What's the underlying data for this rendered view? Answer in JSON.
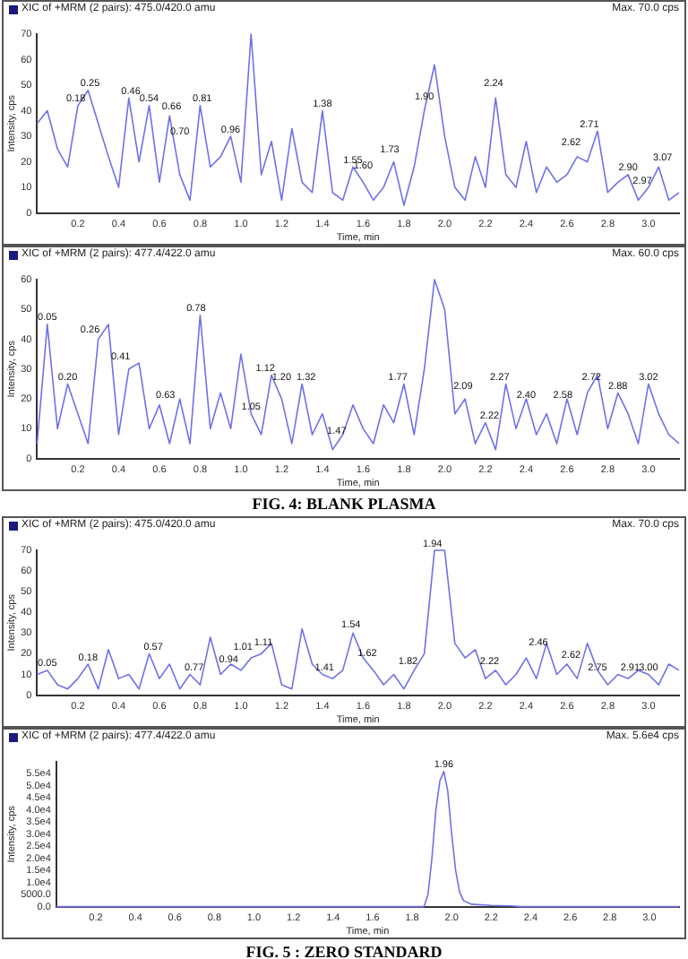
{
  "chart_data": [
    {
      "type": "line",
      "title": "XIC of +MRM (2 pairs): 475.0/420.0 amu",
      "subtitle": "Max. 70.0 cps",
      "xlabel": "Time, min",
      "ylabel": "Intensity, cps",
      "xlim": [
        0,
        3.15
      ],
      "ylim": [
        0,
        70
      ],
      "xticks": [
        0.2,
        0.4,
        0.6,
        0.8,
        {
          "value": 1,
          "label": "1.0"
        },
        1.2,
        1.4,
        1.6,
        1.8,
        {
          "value": 2,
          "label": "2.0"
        },
        2.2,
        2.4,
        2.6,
        2.8,
        {
          "value": 3,
          "label": "3.0"
        }
      ],
      "yticks": [
        0,
        10,
        20,
        30,
        40,
        50,
        60,
        70
      ],
      "x": [
        0,
        0.05,
        0.1,
        0.15,
        0.2,
        0.25,
        0.3,
        0.35,
        0.4,
        0.45,
        0.5,
        0.55,
        0.6,
        0.65,
        0.7,
        0.75,
        0.8,
        0.85,
        0.9,
        0.95,
        1,
        1.05,
        1.1,
        1.15,
        1.2,
        1.25,
        1.3,
        1.35,
        1.4,
        1.45,
        1.5,
        1.55,
        1.6,
        1.65,
        1.7,
        1.75,
        1.8,
        1.85,
        1.9,
        1.95,
        2,
        2.05,
        2.1,
        2.15,
        2.2,
        2.25,
        2.3,
        2.35,
        2.4,
        2.45,
        2.5,
        2.55,
        2.6,
        2.65,
        2.7,
        2.75,
        2.8,
        2.85,
        2.9,
        2.95,
        3,
        3.05,
        3.1,
        3.15
      ],
      "series": [
        {
          "color": "#7070e8",
          "values": [
            35,
            40,
            25,
            18,
            42,
            48,
            35,
            22,
            10,
            45,
            20,
            42,
            12,
            38,
            15,
            5,
            42,
            18,
            22,
            30,
            12,
            70,
            15,
            28,
            5,
            33,
            12,
            8,
            40,
            8,
            5,
            18,
            12,
            5,
            10,
            20,
            3,
            18,
            40,
            58,
            30,
            10,
            5,
            22,
            10,
            45,
            15,
            10,
            28,
            8,
            18,
            12,
            15,
            22,
            20,
            32,
            8,
            12,
            15,
            5,
            10,
            18,
            5,
            8
          ]
        }
      ],
      "annotations": [
        {
          "text": "0.18",
          "x": 0.19,
          "y": 42
        },
        {
          "text": "0.25",
          "x": 0.26,
          "y": 48
        },
        {
          "text": "0.46",
          "x": 0.46,
          "y": 45
        },
        {
          "text": "0.54",
          "x": 0.55,
          "y": 42
        },
        {
          "text": "0.66",
          "x": 0.66,
          "y": 39
        },
        {
          "text": "0.70",
          "x": 0.7,
          "y": 29
        },
        {
          "text": "0.81",
          "x": 0.81,
          "y": 42
        },
        {
          "text": "0.96",
          "x": 0.95,
          "y": 30
        },
        {
          "text": "1.38",
          "x": 1.4,
          "y": 40
        },
        {
          "text": "1.55",
          "x": 1.55,
          "y": 18
        },
        {
          "text": "1.60",
          "x": 1.6,
          "y": 16
        },
        {
          "text": "1.73",
          "x": 1.73,
          "y": 22
        },
        {
          "text": "1.90",
          "x": 1.9,
          "y": 43
        },
        {
          "text": "2.24",
          "x": 2.24,
          "y": 48
        },
        {
          "text": "2.62",
          "x": 2.62,
          "y": 25
        },
        {
          "text": "2.71",
          "x": 2.71,
          "y": 32
        },
        {
          "text": "2.90",
          "x": 2.9,
          "y": 15
        },
        {
          "text": "2.97",
          "x": 2.97,
          "y": 10
        },
        {
          "text": "3.07",
          "x": 3.07,
          "y": 19
        }
      ],
      "grid": false,
      "legend": false,
      "marker": "none",
      "line_style": "solid"
    },
    {
      "type": "line",
      "title": "XIC of +MRM (2 pairs): 477.4/422.0 amu",
      "subtitle": "Max. 60.0 cps",
      "xlabel": "Time, min",
      "ylabel": "Intensity, cps",
      "xlim": [
        0,
        3.15
      ],
      "ylim": [
        0,
        60
      ],
      "xticks": [
        0.2,
        0.4,
        0.6,
        0.8,
        {
          "value": 1,
          "label": "1.0"
        },
        1.2,
        1.4,
        1.6,
        1.8,
        {
          "value": 2,
          "label": "2.0"
        },
        2.2,
        2.4,
        2.6,
        2.8,
        {
          "value": 3,
          "label": "3.0"
        }
      ],
      "yticks": [
        0,
        10,
        20,
        30,
        40,
        50,
        60
      ],
      "x": [
        0,
        0.05,
        0.1,
        0.15,
        0.2,
        0.25,
        0.3,
        0.35,
        0.4,
        0.45,
        0.5,
        0.55,
        0.6,
        0.65,
        0.7,
        0.75,
        0.8,
        0.85,
        0.9,
        0.95,
        1,
        1.05,
        1.1,
        1.15,
        1.2,
        1.25,
        1.3,
        1.35,
        1.4,
        1.45,
        1.5,
        1.55,
        1.6,
        1.65,
        1.7,
        1.75,
        1.8,
        1.85,
        1.9,
        1.95,
        2,
        2.05,
        2.1,
        2.15,
        2.2,
        2.25,
        2.3,
        2.35,
        2.4,
        2.45,
        2.5,
        2.55,
        2.6,
        2.65,
        2.7,
        2.75,
        2.8,
        2.85,
        2.9,
        2.95,
        3,
        3.05,
        3.1,
        3.15
      ],
      "series": [
        {
          "color": "#7070e8",
          "values": [
            5,
            45,
            10,
            25,
            15,
            5,
            40,
            45,
            8,
            30,
            32,
            10,
            18,
            5,
            20,
            5,
            48,
            10,
            22,
            10,
            35,
            15,
            8,
            28,
            20,
            5,
            25,
            8,
            15,
            3,
            8,
            18,
            10,
            5,
            18,
            12,
            25,
            8,
            30,
            60,
            50,
            15,
            20,
            5,
            12,
            3,
            25,
            10,
            20,
            8,
            15,
            5,
            20,
            8,
            22,
            28,
            10,
            22,
            15,
            5,
            25,
            15,
            8,
            5
          ]
        }
      ],
      "annotations": [
        {
          "text": "0.05",
          "x": 0.05,
          "y": 45
        },
        {
          "text": "0.20",
          "x": 0.15,
          "y": 25
        },
        {
          "text": "0.26",
          "x": 0.26,
          "y": 41
        },
        {
          "text": "0.41",
          "x": 0.41,
          "y": 32
        },
        {
          "text": "0.63",
          "x": 0.63,
          "y": 19
        },
        {
          "text": "0.78",
          "x": 0.78,
          "y": 48
        },
        {
          "text": "1.05",
          "x": 1.05,
          "y": 15
        },
        {
          "text": "1.12",
          "x": 1.12,
          "y": 28
        },
        {
          "text": "1.20",
          "x": 1.2,
          "y": 25
        },
        {
          "text": "1.32",
          "x": 1.32,
          "y": 25
        },
        {
          "text": "1.47",
          "x": 1.47,
          "y": 7
        },
        {
          "text": "1.77",
          "x": 1.77,
          "y": 25
        },
        {
          "text": "2.09",
          "x": 2.09,
          "y": 22
        },
        {
          "text": "2.22",
          "x": 2.22,
          "y": 12
        },
        {
          "text": "2.27",
          "x": 2.27,
          "y": 25
        },
        {
          "text": "2.40",
          "x": 2.4,
          "y": 19
        },
        {
          "text": "2.58",
          "x": 2.58,
          "y": 19
        },
        {
          "text": "2.72",
          "x": 2.72,
          "y": 25
        },
        {
          "text": "2.88",
          "x": 2.85,
          "y": 22
        },
        {
          "text": "3.02",
          "x": 3,
          "y": 25
        },
        "FIG. 4: BLANK PLASMA"
      ],
      "grid": false,
      "legend": false,
      "marker": "none",
      "line_style": "solid"
    },
    {
      "type": "line",
      "title": "XIC of +MRM (2 pairs): 475.0/420.0 amu",
      "subtitle": "Max. 70.0 cps",
      "xlabel": "Time, min",
      "ylabel": "Intensity, cps",
      "xlim": [
        0,
        3.15
      ],
      "ylim": [
        0,
        70
      ],
      "xticks": [
        0.2,
        0.4,
        0.6,
        0.8,
        {
          "value": 1,
          "label": "1.0"
        },
        1.2,
        1.4,
        1.6,
        1.8,
        {
          "value": 2,
          "label": "2.0"
        },
        2.2,
        2.4,
        2.6,
        2.8,
        {
          "value": 3,
          "label": "3.0"
        }
      ],
      "yticks": [
        0,
        10,
        20,
        30,
        40,
        50,
        60,
        70
      ],
      "x": [
        0,
        0.05,
        0.1,
        0.15,
        0.2,
        0.25,
        0.3,
        0.35,
        0.4,
        0.45,
        0.5,
        0.55,
        0.6,
        0.65,
        0.7,
        0.75,
        0.8,
        0.85,
        0.9,
        0.95,
        1,
        1.05,
        1.1,
        1.15,
        1.2,
        1.25,
        1.3,
        1.35,
        1.4,
        1.45,
        1.5,
        1.55,
        1.6,
        1.65,
        1.7,
        1.75,
        1.8,
        1.85,
        1.9,
        1.95,
        2,
        2.05,
        2.1,
        2.15,
        2.2,
        2.25,
        2.3,
        2.35,
        2.4,
        2.45,
        2.5,
        2.55,
        2.6,
        2.65,
        2.7,
        2.75,
        2.8,
        2.85,
        2.9,
        2.95,
        3,
        3.05,
        3.1,
        3.15
      ],
      "series": [
        {
          "color": "#7070e8",
          "values": [
            10,
            12,
            5,
            3,
            8,
            15,
            3,
            22,
            8,
            10,
            3,
            20,
            8,
            15,
            3,
            10,
            5,
            28,
            10,
            15,
            12,
            18,
            20,
            25,
            5,
            3,
            32,
            15,
            10,
            8,
            12,
            30,
            18,
            12,
            5,
            10,
            3,
            12,
            20,
            70,
            70,
            25,
            18,
            22,
            8,
            12,
            5,
            10,
            18,
            8,
            25,
            10,
            15,
            8,
            25,
            12,
            5,
            10,
            8,
            12,
            10,
            5,
            15,
            12
          ]
        }
      ],
      "annotations": [
        {
          "text": "0.05",
          "x": 0.05,
          "y": 12
        },
        {
          "text": "0.18",
          "x": 0.25,
          "y": 15
        },
        {
          "text": "0.57",
          "x": 0.57,
          "y": 20
        },
        {
          "text": "0.77",
          "x": 0.77,
          "y": 10
        },
        {
          "text": "0.94",
          "x": 0.94,
          "y": 14
        },
        {
          "text": "1.01",
          "x": 1.01,
          "y": 20
        },
        {
          "text": "1.11",
          "x": 1.11,
          "y": 22
        },
        {
          "text": "1.41",
          "x": 1.41,
          "y": 10
        },
        {
          "text": "1.54",
          "x": 1.54,
          "y": 31
        },
        {
          "text": "1.62",
          "x": 1.62,
          "y": 17
        },
        {
          "text": "1.82",
          "x": 1.82,
          "y": 13
        },
        {
          "text": "1.94",
          "x": 1.94,
          "y": 70
        },
        {
          "text": "2.22",
          "x": 2.22,
          "y": 13
        },
        {
          "text": "2.46",
          "x": 2.46,
          "y": 22
        },
        {
          "text": "2.62",
          "x": 2.62,
          "y": 16
        },
        {
          "text": "2.75",
          "x": 2.75,
          "y": 10
        },
        {
          "text": "2.91",
          "x": 2.91,
          "y": 10
        },
        {
          "text": "3.00",
          "x": 3,
          "y": 10
        }
      ],
      "grid": false,
      "legend": false,
      "marker": "none",
      "line_style": "solid"
    },
    {
      "type": "line",
      "title": "XIC of +MRM (2 pairs): 477.4/422.0 amu",
      "subtitle": "Max. 5.6e4 cps",
      "xlabel": "Time, min",
      "ylabel": "Intensity, cps",
      "xlim": [
        0,
        3.15
      ],
      "ylim": [
        0,
        60000
      ],
      "xticks": [
        0.2,
        0.4,
        0.6,
        0.8,
        {
          "value": 1,
          "label": "1.0"
        },
        1.2,
        1.4,
        1.6,
        1.8,
        {
          "value": 2,
          "label": "2.0"
        },
        2.2,
        2.4,
        2.6,
        2.8,
        {
          "value": 3,
          "label": "3.0"
        }
      ],
      "yticks": [
        {
          "value": 0,
          "label": "0.0"
        },
        {
          "value": 5000,
          "label": "5000.0"
        },
        {
          "value": 10000,
          "label": "1.0e4"
        },
        {
          "value": 15000,
          "label": "1.5e4"
        },
        {
          "value": 20000,
          "label": "2.0e4"
        },
        {
          "value": 25000,
          "label": "2.5e4"
        },
        {
          "value": 30000,
          "label": "3.0e4"
        },
        {
          "value": 35000,
          "label": "3.5e4"
        },
        {
          "value": 40000,
          "label": "4.0e4"
        },
        {
          "value": 45000,
          "label": "4.5e4"
        },
        {
          "value": 50000,
          "label": "5.0e4"
        },
        {
          "value": 55000,
          "label": "5.5e4"
        }
      ],
      "x": [
        0,
        0.5,
        1,
        1.5,
        1.86,
        1.88,
        1.9,
        1.92,
        1.94,
        1.96,
        1.98,
        2,
        2.02,
        2.04,
        2.06,
        2.1,
        2.2,
        2.3,
        2.35,
        2.6,
        3.15
      ],
      "series": [
        {
          "color": "#7070e8",
          "values": [
            0,
            0,
            0,
            0,
            0,
            5000,
            20000,
            40000,
            52000,
            56000,
            48000,
            30000,
            15000,
            6000,
            2500,
            1000,
            500,
            300,
            0,
            0,
            0
          ]
        }
      ],
      "annotations": [
        {
          "text": "1.96",
          "x": 1.96,
          "y": 56000
        },
        "FIG. 5 : ZERO STANDARD"
      ],
      "grid": false,
      "legend": false,
      "marker": "none",
      "line_style": "solid"
    }
  ]
}
